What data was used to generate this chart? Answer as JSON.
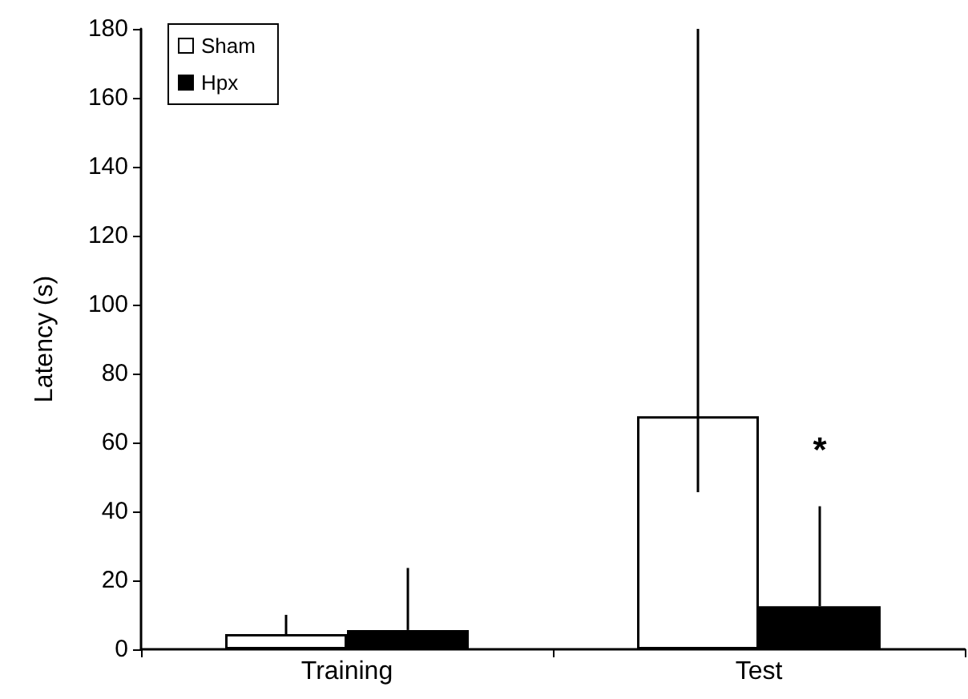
{
  "chart_data": {
    "type": "bar",
    "ylabel": "Latency (s)",
    "categories": [
      "Training",
      "Test"
    ],
    "series": [
      {
        "name": "Sham",
        "color": "#ffffff",
        "values": [
          4.4,
          67.6
        ],
        "errors": [
          [
            4.4,
            10
          ],
          [
            45.6,
            180
          ]
        ]
      },
      {
        "name": "Hpx",
        "color": "#000000",
        "values": [
          5.6,
          12.5
        ],
        "errors": [
          [
            5.6,
            23.6
          ],
          [
            12.5,
            41.5
          ]
        ]
      }
    ],
    "ylim": [
      0,
      180
    ],
    "yticks": [
      0,
      20,
      40,
      60,
      80,
      100,
      120,
      140,
      160,
      180
    ],
    "annotations": [
      {
        "text": "*",
        "x": "Test",
        "y": 58
      }
    ],
    "legend": "top left",
    "grid": false
  }
}
